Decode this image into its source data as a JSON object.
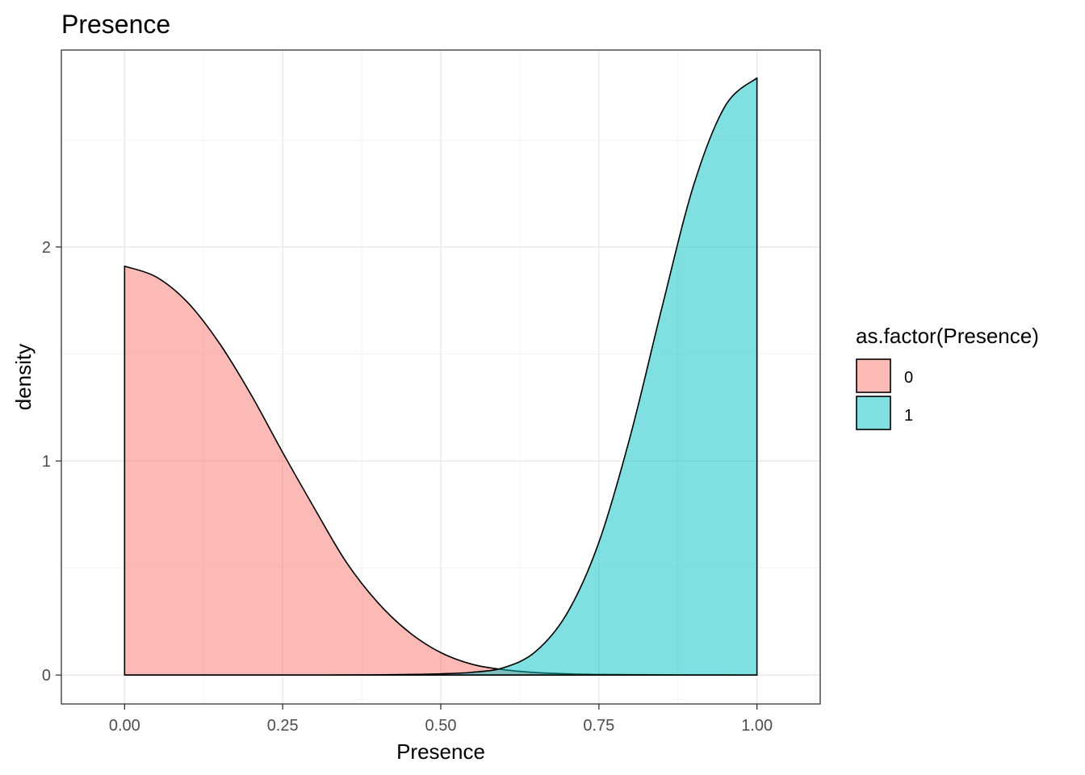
{
  "chart_data": {
    "type": "area",
    "title": "Presence",
    "xlabel": "Presence",
    "ylabel": "density",
    "xlim": [
      -0.1,
      1.1
    ],
    "ylim": [
      -0.135,
      2.92
    ],
    "x_ticks": [
      0.0,
      0.25,
      0.5,
      0.75,
      1.0
    ],
    "x_tick_labels": [
      "0.00",
      "0.25",
      "0.50",
      "0.75",
      "1.00"
    ],
    "y_ticks": [
      0,
      1,
      2
    ],
    "y_tick_labels": [
      "0",
      "1",
      "2"
    ],
    "grid": true,
    "legend": {
      "title": "as.factor(Presence)",
      "placement": "right",
      "entries": [
        "0",
        "1"
      ]
    },
    "series": [
      {
        "name": "0",
        "color": "#F8766D",
        "x": [
          0.0,
          0.05,
          0.1,
          0.15,
          0.2,
          0.25,
          0.3,
          0.35,
          0.4,
          0.45,
          0.5,
          0.55,
          0.6,
          0.65,
          0.7,
          0.75,
          0.8,
          0.85,
          0.9,
          0.95,
          1.0
        ],
        "values": [
          1.91,
          1.86,
          1.74,
          1.55,
          1.31,
          1.04,
          0.78,
          0.53,
          0.34,
          0.2,
          0.105,
          0.05,
          0.025,
          0.012,
          0.006,
          0.003,
          0.002,
          0.001,
          0.0007,
          0.0004,
          0.0002
        ]
      },
      {
        "name": "1",
        "color": "#00BFC4",
        "x": [
          0.0,
          0.05,
          0.1,
          0.15,
          0.2,
          0.25,
          0.3,
          0.35,
          0.4,
          0.45,
          0.5,
          0.55,
          0.6,
          0.65,
          0.7,
          0.75,
          0.8,
          0.85,
          0.9,
          0.95,
          1.0
        ],
        "values": [
          0.0,
          0.0,
          0.0,
          0.0,
          0.0,
          0.0,
          0.0,
          0.0005,
          0.001,
          0.003,
          0.006,
          0.013,
          0.035,
          0.11,
          0.29,
          0.62,
          1.12,
          1.72,
          2.29,
          2.66,
          2.79
        ]
      }
    ]
  }
}
